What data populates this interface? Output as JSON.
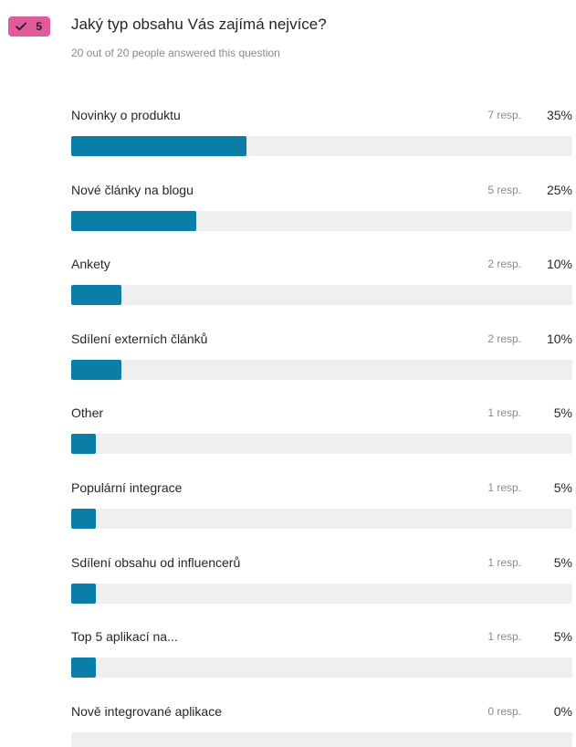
{
  "question": {
    "number": "5",
    "title": "Jaký typ obsahu Vás zajímá nejvíce?",
    "subtitle": "20 out of 20 people answered this question",
    "badge_icon": "checkmark-icon",
    "badge_color": "#e25a9a"
  },
  "colors": {
    "bar_fill": "#0b7ea7",
    "bar_track": "#efefef"
  },
  "answers": [
    {
      "label": "Novinky o produktu",
      "responses": "7 resp.",
      "percent": "35%",
      "share": 0.35
    },
    {
      "label": "Nové články na blogu",
      "responses": "5 resp.",
      "percent": "25%",
      "share": 0.25
    },
    {
      "label": "Ankety",
      "responses": "2 resp.",
      "percent": "10%",
      "share": 0.1
    },
    {
      "label": "Sdílení externích článků",
      "responses": "2 resp.",
      "percent": "10%",
      "share": 0.1
    },
    {
      "label": "Other",
      "responses": "1 resp.",
      "percent": "5%",
      "share": 0.05
    },
    {
      "label": "Populární integrace",
      "responses": "1 resp.",
      "percent": "5%",
      "share": 0.05
    },
    {
      "label": "Sdílení obsahu od influencerů",
      "responses": "1 resp.",
      "percent": "5%",
      "share": 0.05
    },
    {
      "label": "Top 5 aplikací na...",
      "responses": "1 resp.",
      "percent": "5%",
      "share": 0.05
    },
    {
      "label": "Nově integrované aplikace",
      "responses": "0 resp.",
      "percent": "0%",
      "share": 0
    }
  ]
}
